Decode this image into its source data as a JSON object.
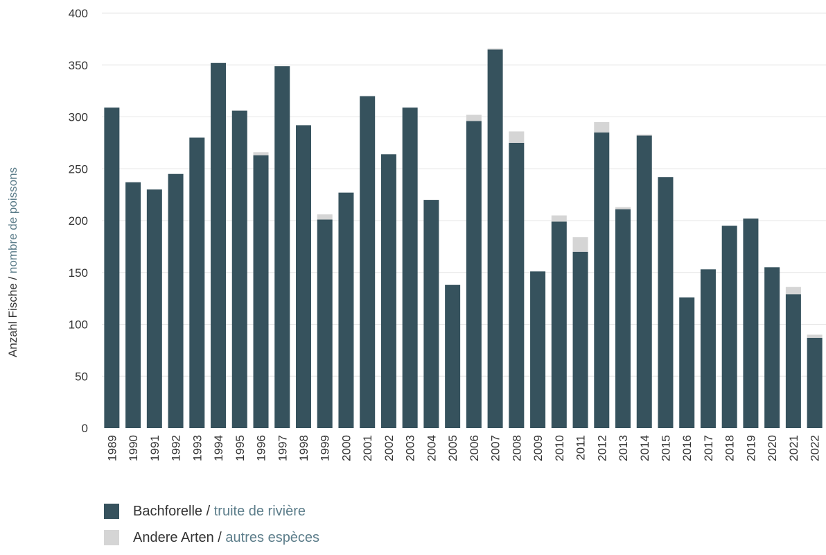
{
  "chart_data": {
    "type": "bar",
    "stacked": true,
    "categories": [
      "1989",
      "1990",
      "1991",
      "1992",
      "1993",
      "1994",
      "1995",
      "1996",
      "1997",
      "1998",
      "1999",
      "2000",
      "2001",
      "2002",
      "2003",
      "2004",
      "2005",
      "2006",
      "2007",
      "2008",
      "2009",
      "2010",
      "2011",
      "2012",
      "2013",
      "2014",
      "2015",
      "2016",
      "2017",
      "2018",
      "2019",
      "2020",
      "2021",
      "2022"
    ],
    "series": [
      {
        "name": "Bachforelle / truite de rivière",
        "name_de": "Bachforelle",
        "name_fr": "truite de rivière",
        "color": "#36525d",
        "values": [
          309,
          237,
          230,
          245,
          280,
          352,
          306,
          263,
          349,
          292,
          201,
          227,
          320,
          264,
          309,
          220,
          138,
          296,
          365,
          275,
          151,
          199,
          170,
          285,
          211,
          282,
          242,
          126,
          153,
          195,
          202,
          155,
          129,
          87
        ]
      },
      {
        "name": "Andere Arten / autres espèces",
        "name_de": "Andere Arten",
        "name_fr": "autres espèces",
        "color": "#d5d5d5",
        "values": [
          0,
          0,
          0,
          0,
          0,
          0,
          0,
          3,
          0,
          0,
          5,
          0,
          0,
          0,
          0,
          0,
          0,
          6,
          1,
          11,
          0,
          6,
          14,
          10,
          2,
          1,
          0,
          0,
          0,
          0,
          0,
          0,
          7,
          3
        ]
      }
    ],
    "ylabel_de": "Anzahl Fische",
    "ylabel_fr": "nombre de poissons",
    "ylim": [
      0,
      400
    ],
    "yticks": [
      0,
      50,
      100,
      150,
      200,
      250,
      300,
      350,
      400
    ],
    "grid": true,
    "legend_position": "bottom-left",
    "colors": {
      "accent_fr": "#5c7d8a",
      "text": "#333333",
      "grid": "#e6e6e6"
    }
  },
  "ylabel_separator": " / "
}
